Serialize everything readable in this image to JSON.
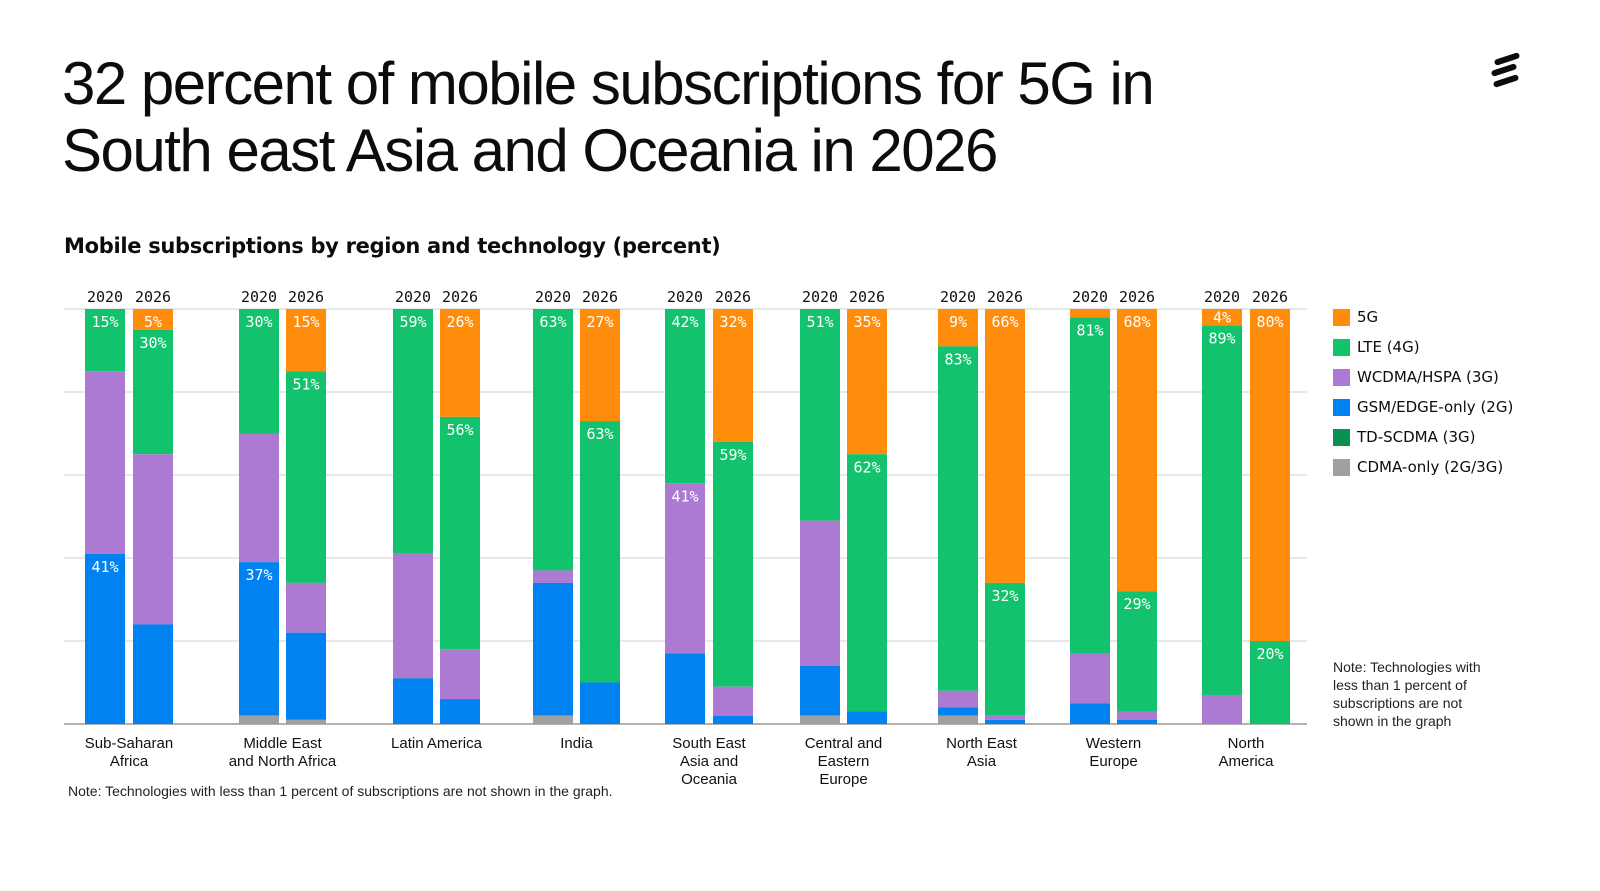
{
  "title": "32 percent of mobile subscriptions for 5G in South east Asia and Oceania in 2026",
  "subtitle": "Mobile subscriptions by region and technology (percent)",
  "notes": {
    "bottom": "Note: Technologies with less than 1 percent of subscriptions are not shown in the graph.",
    "side": "Note: Technologies with less than 1 percent of subscriptions are not shown in the graph"
  },
  "colors": {
    "5G": "#ff8c0a",
    "LTE (4G)": "#12c26d",
    "WCDMA/HSPA (3G)": "#ac79d3",
    "GSM/EDGE-only (2G)": "#0082f0",
    "TD-SCDMA (3G)": "#0a9150",
    "CDMA-only (2G/3G)": "#a0a0a0"
  },
  "chart_data": {
    "type": "bar",
    "stacked": true,
    "ylim": [
      0,
      100
    ],
    "grid": true,
    "legend_position": "right",
    "legend": [
      "5G",
      "LTE (4G)",
      "WCDMA/HSPA (3G)",
      "GSM/EDGE-only (2G)",
      "TD-SCDMA (3G)",
      "CDMA-only (2G/3G)"
    ],
    "series_order": [
      "5G",
      "LTE (4G)",
      "WCDMA/HSPA (3G)",
      "GSM/EDGE-only (2G)",
      "TD-SCDMA (3G)",
      "CDMA-only (2G/3G)"
    ],
    "groups": [
      {
        "region": "Sub-Saharan Africa",
        "bars": [
          {
            "year": "2020",
            "values": {
              "5G": 0,
              "LTE (4G)": 15,
              "WCDMA/HSPA (3G)": 44,
              "GSM/EDGE-only (2G)": 41,
              "TD-SCDMA (3G)": 0,
              "CDMA-only (2G/3G)": 0
            },
            "labeled": [
              "LTE (4G)",
              "GSM/EDGE-only (2G)"
            ]
          },
          {
            "year": "2026",
            "values": {
              "5G": 5,
              "LTE (4G)": 30,
              "WCDMA/HSPA (3G)": 41,
              "GSM/EDGE-only (2G)": 24,
              "TD-SCDMA (3G)": 0,
              "CDMA-only (2G/3G)": 0
            },
            "labeled": [
              "5G",
              "LTE (4G)"
            ]
          }
        ]
      },
      {
        "region": "Middle East and North Africa",
        "bars": [
          {
            "year": "2020",
            "values": {
              "5G": 0,
              "LTE (4G)": 30,
              "WCDMA/HSPA (3G)": 31,
              "GSM/EDGE-only (2G)": 37,
              "TD-SCDMA (3G)": 0,
              "CDMA-only (2G/3G)": 2
            },
            "labeled": [
              "LTE (4G)",
              "GSM/EDGE-only (2G)"
            ]
          },
          {
            "year": "2026",
            "values": {
              "5G": 15,
              "LTE (4G)": 51,
              "WCDMA/HSPA (3G)": 12,
              "GSM/EDGE-only (2G)": 21,
              "TD-SCDMA (3G)": 0,
              "CDMA-only (2G/3G)": 1
            },
            "labeled": [
              "5G",
              "LTE (4G)"
            ]
          }
        ]
      },
      {
        "region": "Latin America",
        "bars": [
          {
            "year": "2020",
            "values": {
              "5G": 0,
              "LTE (4G)": 59,
              "WCDMA/HSPA (3G)": 30,
              "GSM/EDGE-only (2G)": 11,
              "TD-SCDMA (3G)": 0,
              "CDMA-only (2G/3G)": 0
            },
            "labeled": [
              "LTE (4G)"
            ]
          },
          {
            "year": "2026",
            "values": {
              "5G": 26,
              "LTE (4G)": 56,
              "WCDMA/HSPA (3G)": 12,
              "GSM/EDGE-only (2G)": 6,
              "TD-SCDMA (3G)": 0,
              "CDMA-only (2G/3G)": 0
            },
            "labeled": [
              "5G",
              "LTE (4G)"
            ]
          }
        ]
      },
      {
        "region": "India",
        "bars": [
          {
            "year": "2020",
            "values": {
              "5G": 0,
              "LTE (4G)": 63,
              "WCDMA/HSPA (3G)": 3,
              "GSM/EDGE-only (2G)": 32,
              "TD-SCDMA (3G)": 0,
              "CDMA-only (2G/3G)": 2
            },
            "labeled": [
              "LTE (4G)"
            ]
          },
          {
            "year": "2026",
            "values": {
              "5G": 27,
              "LTE (4G)": 63,
              "WCDMA/HSPA (3G)": 0,
              "GSM/EDGE-only (2G)": 10,
              "TD-SCDMA (3G)": 0,
              "CDMA-only (2G/3G)": 0
            },
            "labeled": [
              "5G",
              "LTE (4G)"
            ]
          }
        ]
      },
      {
        "region": "South East Asia and Oceania",
        "bars": [
          {
            "year": "2020",
            "values": {
              "5G": 0,
              "LTE (4G)": 42,
              "WCDMA/HSPA (3G)": 41,
              "GSM/EDGE-only (2G)": 17,
              "TD-SCDMA (3G)": 0,
              "CDMA-only (2G/3G)": 0
            },
            "labeled": [
              "LTE (4G)",
              "WCDMA/HSPA (3G)"
            ]
          },
          {
            "year": "2026",
            "values": {
              "5G": 32,
              "LTE (4G)": 59,
              "WCDMA/HSPA (3G)": 7,
              "GSM/EDGE-only (2G)": 2,
              "TD-SCDMA (3G)": 0,
              "CDMA-only (2G/3G)": 0
            },
            "labeled": [
              "5G",
              "LTE (4G)"
            ]
          }
        ]
      },
      {
        "region": "Central and Eastern Europe",
        "bars": [
          {
            "year": "2020",
            "values": {
              "5G": 0,
              "LTE (4G)": 51,
              "WCDMA/HSPA (3G)": 35,
              "GSM/EDGE-only (2G)": 12,
              "TD-SCDMA (3G)": 0,
              "CDMA-only (2G/3G)": 2
            },
            "labeled": [
              "LTE (4G)"
            ]
          },
          {
            "year": "2026",
            "values": {
              "5G": 35,
              "LTE (4G)": 62,
              "WCDMA/HSPA (3G)": 0,
              "GSM/EDGE-only (2G)": 3,
              "TD-SCDMA (3G)": 0,
              "CDMA-only (2G/3G)": 0
            },
            "labeled": [
              "5G",
              "LTE (4G)"
            ]
          }
        ]
      },
      {
        "region": "North East Asia",
        "bars": [
          {
            "year": "2020",
            "values": {
              "5G": 9,
              "LTE (4G)": 83,
              "WCDMA/HSPA (3G)": 4,
              "GSM/EDGE-only (2G)": 2,
              "TD-SCDMA (3G)": 0,
              "CDMA-only (2G/3G)": 2
            },
            "labeled": [
              "5G",
              "LTE (4G)"
            ]
          },
          {
            "year": "2026",
            "values": {
              "5G": 66,
              "LTE (4G)": 32,
              "WCDMA/HSPA (3G)": 1,
              "GSM/EDGE-only (2G)": 1,
              "TD-SCDMA (3G)": 0,
              "CDMA-only (2G/3G)": 0
            },
            "labeled": [
              "5G",
              "LTE (4G)"
            ]
          }
        ]
      },
      {
        "region": "Western Europe",
        "bars": [
          {
            "year": "2020",
            "values": {
              "5G": 2,
              "LTE (4G)": 81,
              "WCDMA/HSPA (3G)": 12,
              "GSM/EDGE-only (2G)": 5,
              "TD-SCDMA (3G)": 0,
              "CDMA-only (2G/3G)": 0
            },
            "labeled": [
              "LTE (4G)"
            ]
          },
          {
            "year": "2026",
            "values": {
              "5G": 68,
              "LTE (4G)": 29,
              "WCDMA/HSPA (3G)": 2,
              "GSM/EDGE-only (2G)": 1,
              "TD-SCDMA (3G)": 0,
              "CDMA-only (2G/3G)": 0
            },
            "labeled": [
              "5G",
              "LTE (4G)"
            ]
          }
        ]
      },
      {
        "region": "North America",
        "bars": [
          {
            "year": "2020",
            "values": {
              "5G": 4,
              "LTE (4G)": 89,
              "WCDMA/HSPA (3G)": 7,
              "GSM/EDGE-only (2G)": 0,
              "TD-SCDMA (3G)": 0,
              "CDMA-only (2G/3G)": 0
            },
            "labeled": [
              "5G",
              "LTE (4G)"
            ]
          },
          {
            "year": "2026",
            "values": {
              "5G": 80,
              "LTE (4G)": 20,
              "WCDMA/HSPA (3G)": 0,
              "GSM/EDGE-only (2G)": 0,
              "TD-SCDMA (3G)": 0,
              "CDMA-only (2G/3G)": 0
            },
            "labeled": [
              "5G",
              "LTE (4G)"
            ]
          }
        ]
      }
    ],
    "region_label_lines": [
      [
        "Sub-Saharan",
        "Africa"
      ],
      [
        "Middle East",
        "and North Africa"
      ],
      [
        "Latin America"
      ],
      [
        "India"
      ],
      [
        "South East",
        "Asia and",
        "Oceania"
      ],
      [
        "Central and",
        "Eastern",
        "Europe"
      ],
      [
        "North East",
        "Asia"
      ],
      [
        "Western",
        "Europe"
      ],
      [
        "North",
        "America"
      ]
    ]
  }
}
